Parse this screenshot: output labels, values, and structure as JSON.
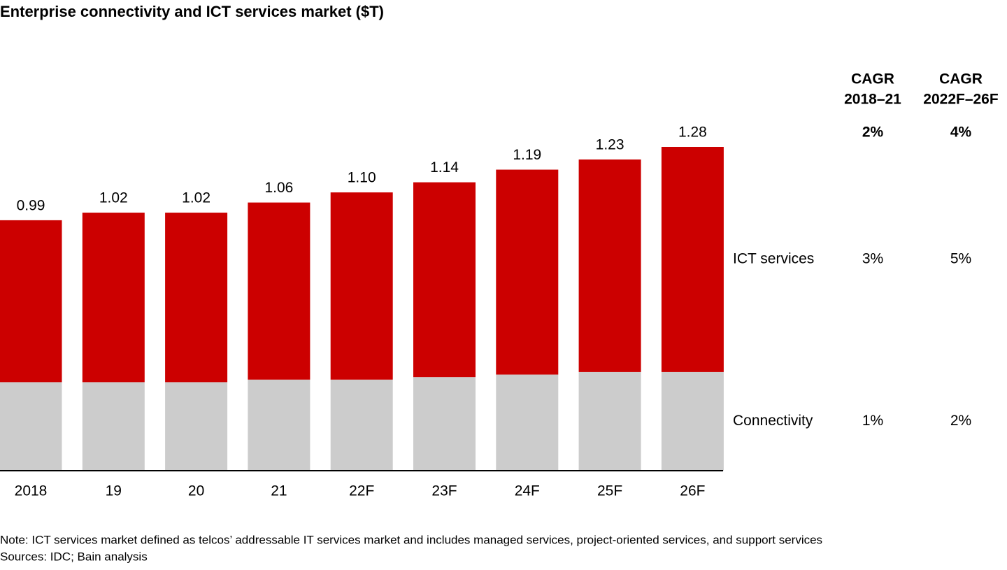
{
  "chart_data": {
    "type": "stacked-bar",
    "title": "Enterprise connectivity and ICT services market ($T)",
    "categories": [
      "2018",
      "19",
      "20",
      "21",
      "22F",
      "23F",
      "24F",
      "25F",
      "26F"
    ],
    "series": [
      {
        "name": "Connectivity",
        "color": "#cccccc",
        "values": [
          0.35,
          0.35,
          0.35,
          0.36,
          0.36,
          0.37,
          0.38,
          0.39,
          0.39
        ],
        "cagr": [
          "1%",
          "2%"
        ]
      },
      {
        "name": "ICT services",
        "color": "#cc0000",
        "values": [
          0.64,
          0.67,
          0.67,
          0.7,
          0.74,
          0.77,
          0.81,
          0.84,
          0.89
        ],
        "cagr": [
          "3%",
          "5%"
        ]
      }
    ],
    "totals": {
      "values": [
        0.99,
        1.02,
        1.02,
        1.06,
        1.1,
        1.14,
        1.19,
        1.23,
        1.28
      ],
      "value_labels": [
        "0.99",
        "1.02",
        "1.02",
        "1.06",
        "1.10",
        "1.14",
        "1.19",
        "1.23",
        "1.28"
      ]
    },
    "cagr_headers": [
      [
        "CAGR",
        "2018–21"
      ],
      [
        "CAGR",
        "2022F–26F"
      ]
    ],
    "cagr_total": [
      "2%",
      "4%"
    ],
    "note": "Note: ICT services market defined as telcos’ addressable IT services market and includes managed services, project-oriented services, and support services",
    "sources": "Sources: IDC; Bain analysis"
  }
}
